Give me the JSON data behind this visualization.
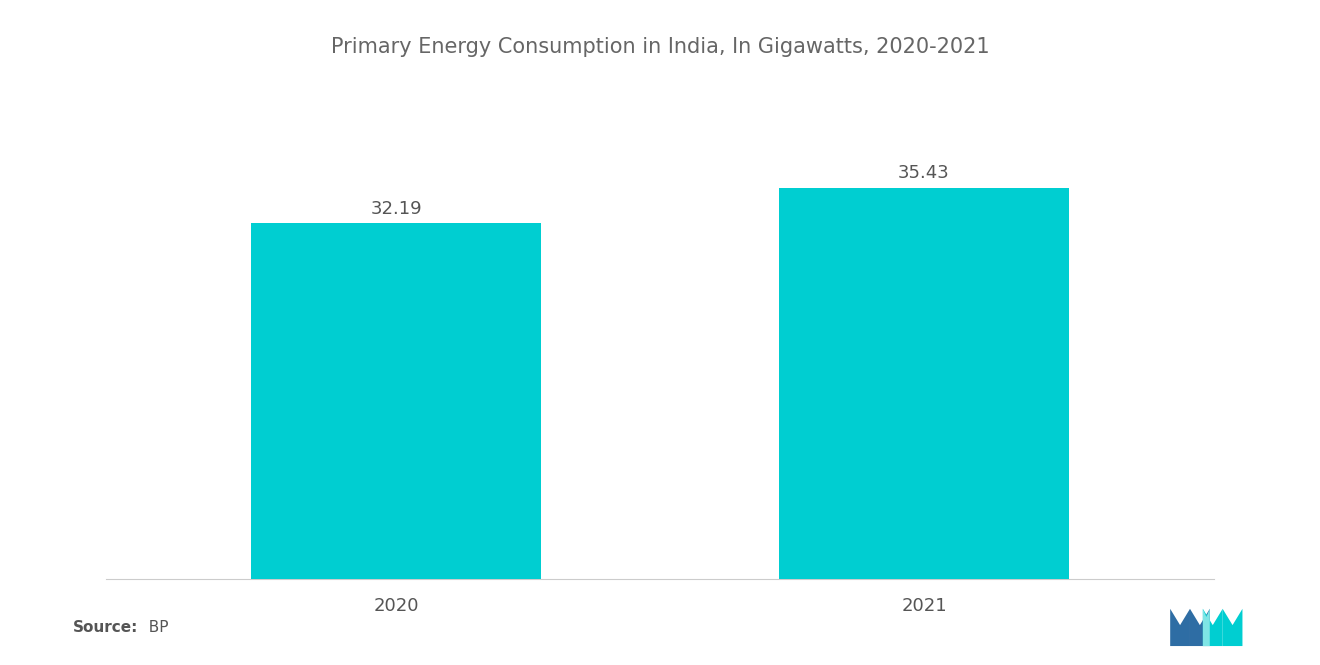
{
  "title": "Primary Energy Consumption in India, In Gigawatts, 2020-2021",
  "categories": [
    "2020",
    "2021"
  ],
  "values": [
    32.19,
    35.43
  ],
  "bar_color": "#00CED1",
  "background_color": "#ffffff",
  "title_color": "#666666",
  "label_color": "#555555",
  "title_fontsize": 15,
  "label_fontsize": 13,
  "value_fontsize": 13,
  "source_label": "Source:",
  "source_value": "  BP",
  "ylim": [
    0,
    44
  ],
  "bar_width": 0.55,
  "x_positions": [
    0,
    1
  ],
  "xlim": [
    -0.55,
    1.55
  ],
  "blue_color": "#2E6DA4",
  "teal_color": "#00CED1"
}
